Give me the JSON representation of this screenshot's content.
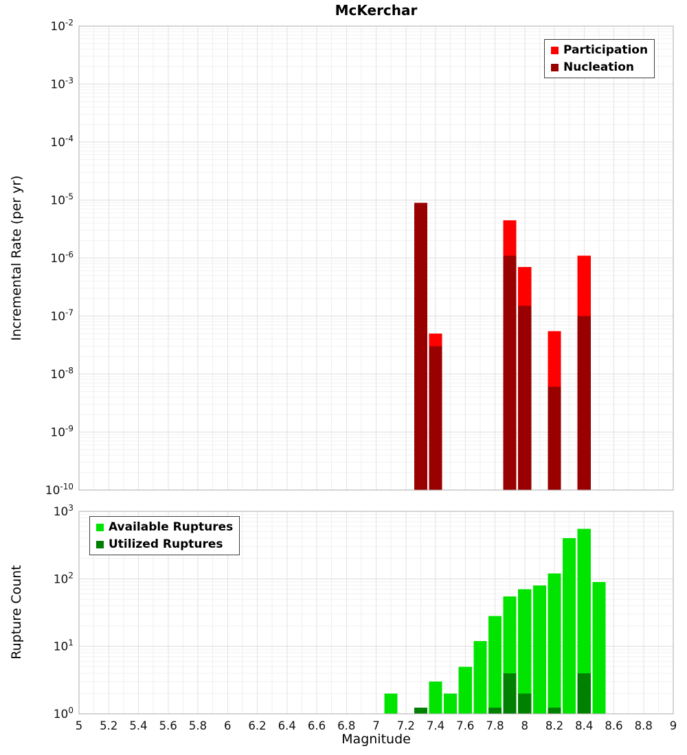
{
  "page": {
    "title": "McKerchar"
  },
  "chart_data": [
    {
      "type": "bar",
      "title": "McKerchar",
      "ylabel": "Incremental Rate (per yr)",
      "xlabel": "",
      "xlim": [
        5,
        9
      ],
      "ylog_exponent_range": [
        -10,
        -2
      ],
      "y_tick_exponents": [
        -2,
        -3,
        -4,
        -5,
        -6,
        -7,
        -8,
        -9,
        -10
      ],
      "bin_width": 0.1,
      "grid": true,
      "legend_position": "top-right",
      "x": [
        7.3,
        7.4,
        7.9,
        8.0,
        8.2,
        8.4
      ],
      "series": [
        {
          "name": "Participation",
          "color": "#ff0000",
          "values": [
            9e-06,
            5e-08,
            4.5e-06,
            7e-07,
            5.5e-08,
            1.1e-06
          ]
        },
        {
          "name": "Nucleation",
          "color": "#990000",
          "values": [
            9e-06,
            3e-08,
            1.1e-06,
            1.5e-07,
            6e-09,
            1e-07
          ]
        }
      ]
    },
    {
      "type": "bar",
      "title": "",
      "ylabel": "Rupture Count",
      "xlabel": "Magnitude",
      "xlim": [
        5,
        9
      ],
      "ylog_exponent_range": [
        0,
        3
      ],
      "y_tick_exponents": [
        3,
        2,
        1,
        0
      ],
      "x_tick_labels": [
        "5",
        "5.2",
        "5.4",
        "5.6",
        "5.8",
        "6",
        "6.2",
        "6.4",
        "6.6",
        "6.8",
        "7",
        "7.2",
        "7.4",
        "7.6",
        "7.8",
        "8",
        "8.2",
        "8.4",
        "8.6",
        "8.8",
        "9"
      ],
      "bin_width": 0.1,
      "grid": true,
      "legend_position": "top-left",
      "x": [
        7.1,
        7.3,
        7.4,
        7.5,
        7.6,
        7.7,
        7.8,
        7.9,
        8.0,
        8.1,
        8.2,
        8.3,
        8.4,
        8.5
      ],
      "series": [
        {
          "name": "Available Ruptures",
          "color": "#00e400",
          "values": [
            2,
            1,
            3,
            2,
            5,
            12,
            28,
            55,
            70,
            80,
            120,
            400,
            550,
            90
          ]
        },
        {
          "name": "Utilized Ruptures",
          "color": "#008000",
          "values": [
            0,
            1,
            0,
            0,
            0,
            0,
            1,
            4,
            2,
            0,
            1,
            0,
            4,
            0
          ]
        }
      ]
    }
  ]
}
